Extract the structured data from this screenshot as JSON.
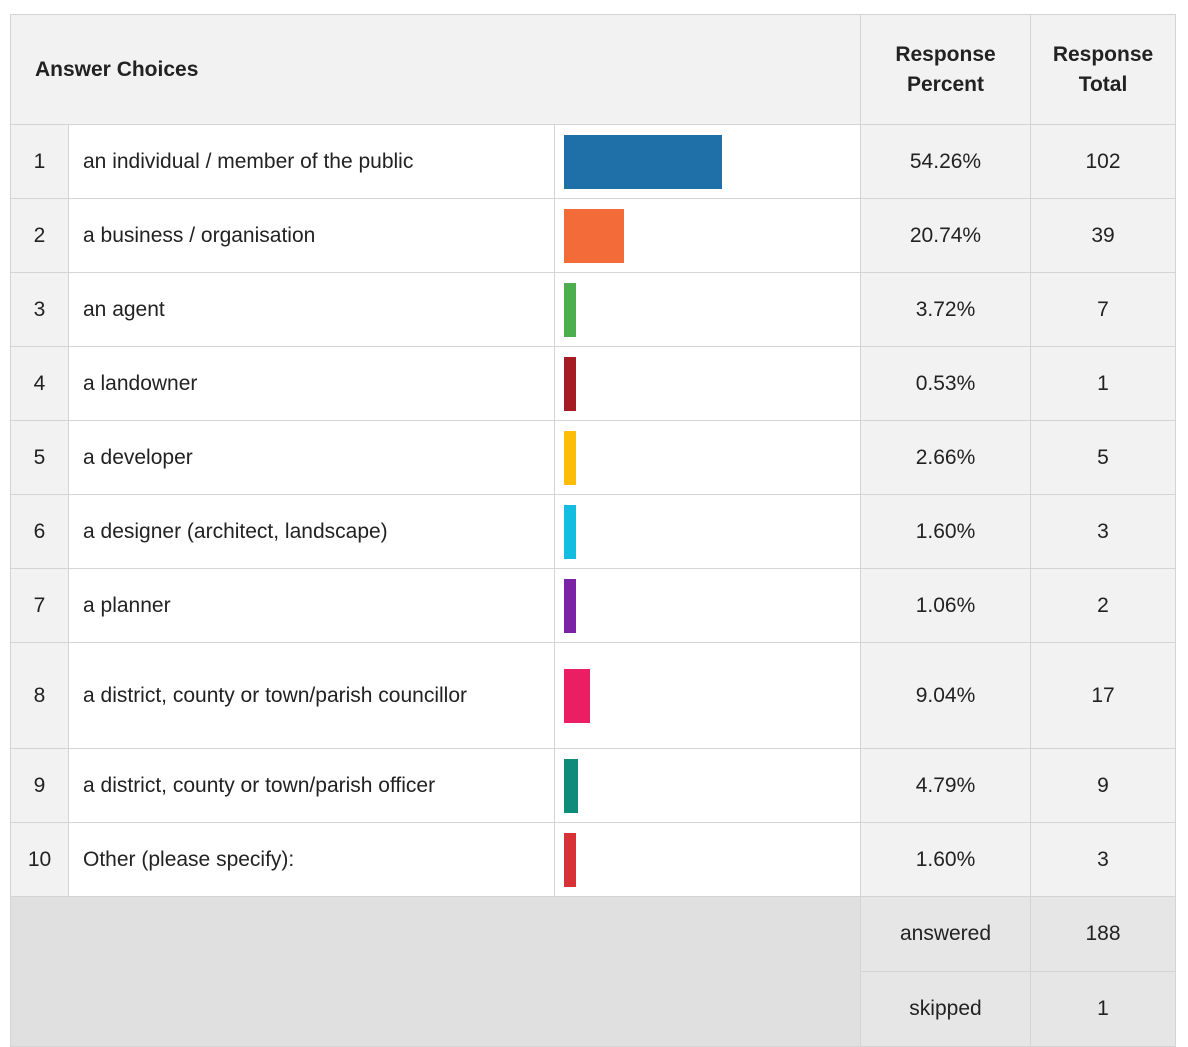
{
  "header": {
    "answer_choices": "Answer Choices",
    "response_percent": "Response Percent",
    "response_total": "Response Total"
  },
  "rows": [
    {
      "num": "1",
      "label": "an individual / member of the public",
      "percent": "54.26%",
      "total": "102",
      "color": "#1f6fa8"
    },
    {
      "num": "2",
      "label": "a business / organisation",
      "percent": "20.74%",
      "total": "39",
      "color": "#f26b38"
    },
    {
      "num": "3",
      "label": "an agent",
      "percent": "3.72%",
      "total": "7",
      "color": "#4cae4c"
    },
    {
      "num": "4",
      "label": "a landowner",
      "percent": "0.53%",
      "total": "1",
      "color": "#a51c22"
    },
    {
      "num": "5",
      "label": "a developer",
      "percent": "2.66%",
      "total": "5",
      "color": "#fbbd08"
    },
    {
      "num": "6",
      "label": "a designer (architect, landscape)",
      "percent": "1.60%",
      "total": "3",
      "color": "#12bde0"
    },
    {
      "num": "7",
      "label": "a planner",
      "percent": "1.06%",
      "total": "2",
      "color": "#7b22a5"
    },
    {
      "num": "8",
      "label": "a district, county or town/parish councillor",
      "percent": "9.04%",
      "total": "17",
      "color": "#e91e63"
    },
    {
      "num": "9",
      "label": "a district, county or town/parish officer",
      "percent": "4.79%",
      "total": "9",
      "color": "#0f8b7a"
    },
    {
      "num": "10",
      "label": "Other (please specify):",
      "percent": "1.60%",
      "total": "3",
      "color": "#d83236"
    }
  ],
  "summary": {
    "answered_label": "answered",
    "answered_value": "188",
    "skipped_label": "skipped",
    "skipped_value": "1"
  },
  "chart_data": {
    "type": "bar",
    "categories": [
      "an individual / member of the public",
      "a business / organisation",
      "an agent",
      "a landowner",
      "a developer",
      "a designer (architect, landscape)",
      "a planner",
      "a district, county or town/parish councillor",
      "a district, county or town/parish officer",
      "Other (please specify):"
    ],
    "values": [
      54.26,
      20.74,
      3.72,
      0.53,
      2.66,
      1.6,
      1.06,
      9.04,
      4.79,
      1.6
    ],
    "totals": [
      102,
      39,
      7,
      1,
      5,
      3,
      2,
      17,
      9,
      3
    ],
    "colors": [
      "#1f6fa8",
      "#f26b38",
      "#4cae4c",
      "#a51c22",
      "#fbbd08",
      "#12bde0",
      "#7b22a5",
      "#e91e63",
      "#0f8b7a",
      "#d83236"
    ],
    "orientation": "horizontal",
    "xlim": [
      0,
      100
    ],
    "grid": false,
    "legend": "none"
  }
}
